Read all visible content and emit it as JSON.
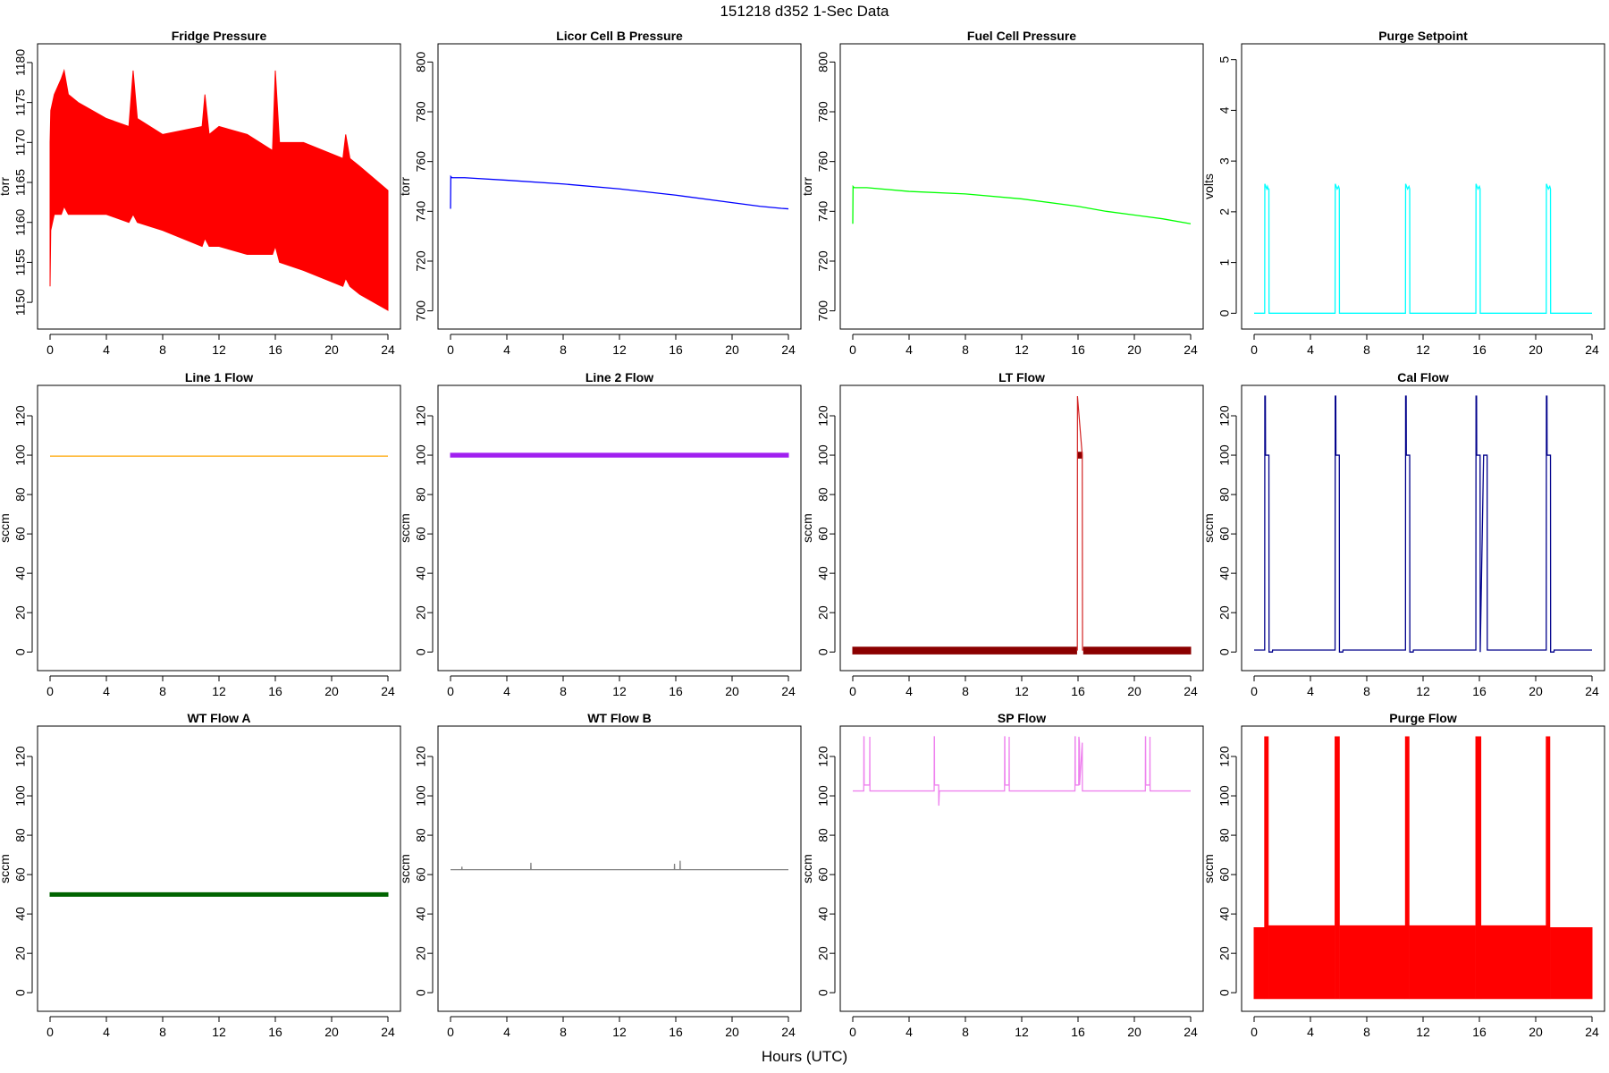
{
  "figure": {
    "title": "151218   d352   1-Sec Data",
    "xlabel": "Hours (UTC)"
  },
  "chart_data": [
    {
      "type": "line",
      "title": "Fridge Pressure",
      "ylabel": "torr",
      "xlim": [
        0,
        24
      ],
      "ylim": [
        1148,
        1181
      ],
      "xticks": [
        0,
        4,
        8,
        12,
        16,
        20,
        24
      ],
      "yticks": [
        1150,
        1155,
        1160,
        1165,
        1170,
        1175,
        1180
      ],
      "color": "#ff0000",
      "band": true,
      "series": [
        {
          "x": [
            0,
            0.05,
            0.3,
            0.8,
            1.0,
            1.3,
            2,
            4,
            5.6,
            5.9,
            6.2,
            8,
            10.8,
            11.0,
            11.3,
            12,
            14,
            15.8,
            16.0,
            16.3,
            18,
            20.8,
            21.0,
            21.3,
            22,
            24
          ],
          "ymin": [
            1152,
            1159,
            1161,
            1161,
            1162,
            1161,
            1161,
            1161,
            1160,
            1161,
            1160,
            1159,
            1157,
            1158,
            1157,
            1157,
            1156,
            1156,
            1157,
            1155,
            1154,
            1152,
            1153,
            1152,
            1151,
            1149
          ],
          "ymax": [
            1170,
            1174,
            1176,
            1178,
            1179,
            1176,
            1175,
            1173,
            1172,
            1179,
            1173,
            1171,
            1172,
            1176,
            1171,
            1172,
            1171,
            1169,
            1179,
            1170,
            1170,
            1168,
            1171,
            1168,
            1167,
            1164
          ]
        }
      ]
    },
    {
      "type": "line",
      "title": "Licor Cell B Pressure",
      "ylabel": "torr",
      "xlim": [
        0,
        24
      ],
      "ylim": [
        697,
        803
      ],
      "xticks": [
        0,
        4,
        8,
        12,
        16,
        20,
        24
      ],
      "yticks": [
        700,
        720,
        740,
        760,
        780,
        800
      ],
      "color": "#0000ff",
      "series": [
        {
          "x": [
            0,
            0.02,
            0.1,
            1,
            4,
            8,
            12,
            16,
            20,
            22,
            23.5,
            24
          ],
          "y": [
            741,
            754,
            753.5,
            753.5,
            752.5,
            751,
            749,
            746.5,
            743.5,
            742,
            741.2,
            741
          ]
        }
      ]
    },
    {
      "type": "line",
      "title": "Fuel Cell Pressure",
      "ylabel": "torr",
      "xlim": [
        0,
        24
      ],
      "ylim": [
        697,
        803
      ],
      "xticks": [
        0,
        4,
        8,
        12,
        16,
        20,
        24
      ],
      "yticks": [
        700,
        720,
        740,
        760,
        780,
        800
      ],
      "color": "#00ff00",
      "series": [
        {
          "x": [
            0,
            0.02,
            0.1,
            1,
            4,
            8,
            12,
            16,
            18,
            20,
            22,
            24
          ],
          "y": [
            735,
            750,
            749.5,
            749.5,
            748,
            747,
            745,
            742,
            740,
            738.5,
            737,
            735
          ]
        }
      ]
    },
    {
      "type": "line",
      "title": "Purge Setpoint",
      "ylabel": "volts",
      "xlim": [
        0,
        24
      ],
      "ylim": [
        -0.1,
        5.1
      ],
      "xticks": [
        0,
        4,
        8,
        12,
        16,
        20,
        24
      ],
      "yticks": [
        0,
        1,
        2,
        3,
        4,
        5
      ],
      "color": "#00ffff",
      "series": [
        {
          "x": [
            0,
            0.75,
            0.76,
            0.9,
            0.95,
            1.0,
            1.05,
            1.06,
            5.75,
            5.76,
            5.9,
            6.0,
            6.05,
            6.06,
            10.75,
            10.76,
            10.9,
            11.0,
            11.05,
            11.06,
            15.75,
            15.76,
            15.9,
            16.0,
            16.05,
            16.06,
            20.75,
            20.76,
            20.9,
            21.0,
            21.05,
            21.06,
            24
          ],
          "y": [
            0,
            0,
            2.55,
            2.45,
            2.5,
            2.45,
            2.45,
            0,
            0,
            2.55,
            2.45,
            2.5,
            2.45,
            0,
            0,
            2.55,
            2.45,
            2.5,
            2.45,
            0,
            0,
            2.55,
            2.45,
            2.5,
            2.45,
            0,
            0,
            2.55,
            2.45,
            2.5,
            2.45,
            0,
            0
          ]
        }
      ]
    },
    {
      "type": "line",
      "title": "Line 1 Flow",
      "ylabel": "sccm",
      "xlim": [
        0,
        24
      ],
      "ylim": [
        -4,
        130
      ],
      "xticks": [
        0,
        4,
        8,
        12,
        16,
        20,
        24
      ],
      "yticks": [
        0,
        20,
        40,
        60,
        80,
        100,
        120
      ],
      "color": "#ffa500",
      "series": [
        {
          "x": [
            0,
            24
          ],
          "y": [
            99.5,
            99.5
          ]
        }
      ]
    },
    {
      "type": "line",
      "title": "Line 2 Flow",
      "ylabel": "sccm",
      "xlim": [
        0,
        24
      ],
      "ylim": [
        -4,
        130
      ],
      "xticks": [
        0,
        4,
        8,
        12,
        16,
        20,
        24
      ],
      "yticks": [
        0,
        20,
        40,
        60,
        80,
        100,
        120
      ],
      "color": "#a020f0",
      "band": true,
      "series": [
        {
          "x": [
            0,
            24
          ],
          "ymin": [
            99,
            99
          ],
          "ymax": [
            101,
            101
          ]
        }
      ]
    },
    {
      "type": "line",
      "title": "LT Flow",
      "ylabel": "sccm",
      "xlim": [
        0,
        24
      ],
      "ylim": [
        -4,
        130
      ],
      "xticks": [
        0,
        4,
        8,
        12,
        16,
        20,
        24
      ],
      "yticks": [
        0,
        20,
        40,
        60,
        80,
        100,
        120
      ],
      "color": "#8b0000",
      "band": true,
      "series": [
        {
          "x": [
            0,
            15.9
          ],
          "ymin": [
            -1,
            -1
          ],
          "ymax": [
            2.5,
            2.5
          ]
        },
        {
          "x": [
            16.0,
            16.3
          ],
          "ymin": [
            98.5,
            98.5
          ],
          "ymax": [
            101.5,
            101.5
          ]
        },
        {
          "x": [
            16.4,
            24
          ],
          "ymin": [
            -1,
            -1
          ],
          "ymax": [
            2.5,
            2.5
          ]
        }
      ],
      "lines": [
        {
          "x": [
            15.9,
            15.95,
            15.96,
            16.3,
            16.32,
            16.4
          ],
          "y": [
            1,
            1,
            130,
            100,
            1,
            1
          ],
          "color": "#d22222"
        }
      ]
    },
    {
      "type": "line",
      "title": "Cal Flow",
      "ylabel": "sccm",
      "xlim": [
        0,
        24
      ],
      "ylim": [
        -4,
        130
      ],
      "xticks": [
        0,
        4,
        8,
        12,
        16,
        20,
        24
      ],
      "yticks": [
        0,
        20,
        40,
        60,
        80,
        100,
        120
      ],
      "color": "#00008b",
      "series": [
        {
          "x": [
            0,
            0.75,
            0.76,
            0.8,
            0.81,
            1.05,
            1.06,
            1.3,
            1.31,
            5.75,
            5.76,
            5.8,
            5.81,
            6.05,
            6.06,
            6.3,
            6.31,
            10.75,
            10.76,
            10.8,
            10.81,
            11.05,
            11.06,
            11.3,
            11.31,
            15.75,
            15.76,
            15.8,
            15.81,
            16.05,
            16.06,
            16.3,
            16.31,
            16.55,
            16.56,
            20.75,
            20.76,
            20.8,
            20.81,
            21.05,
            21.06,
            21.3,
            21.31,
            24
          ],
          "y": [
            1,
            1,
            130,
            130,
            100,
            100,
            0,
            0,
            1,
            1,
            130,
            130,
            100,
            100,
            0,
            0,
            1,
            1,
            130,
            130,
            100,
            100,
            0,
            0,
            1,
            1,
            130,
            130,
            100,
            100,
            0,
            100,
            100,
            100,
            1,
            1,
            130,
            130,
            100,
            100,
            0,
            0,
            1,
            1
          ]
        }
      ]
    },
    {
      "type": "line",
      "title": "WT Flow A",
      "ylabel": "sccm",
      "xlim": [
        0,
        24
      ],
      "ylim": [
        -4,
        130
      ],
      "xticks": [
        0,
        4,
        8,
        12,
        16,
        20,
        24
      ],
      "yticks": [
        0,
        20,
        40,
        60,
        80,
        100,
        120
      ],
      "color": "#006400",
      "band": true,
      "series": [
        {
          "x": [
            0,
            24
          ],
          "ymin": [
            49,
            49
          ],
          "ymax": [
            50.8,
            50.8
          ]
        }
      ]
    },
    {
      "type": "line",
      "title": "WT Flow B",
      "ylabel": "sccm",
      "xlim": [
        0,
        24
      ],
      "ylim": [
        -4,
        130
      ],
      "xticks": [
        0,
        4,
        8,
        12,
        16,
        20,
        24
      ],
      "yticks": [
        0,
        20,
        40,
        60,
        80,
        100,
        120
      ],
      "color": "#808080",
      "series": [
        {
          "x": [
            0,
            0.8,
            0.81,
            0.82,
            5.7,
            5.71,
            5.72,
            15.9,
            15.91,
            15.92,
            16.3,
            16.31,
            16.32,
            24
          ],
          "y": [
            62.5,
            62.5,
            64,
            62.5,
            62.5,
            66,
            62.5,
            62.5,
            65.5,
            62.5,
            62.5,
            67,
            62.5,
            62.5
          ]
        }
      ]
    },
    {
      "type": "line",
      "title": "SP Flow",
      "ylabel": "sccm",
      "xlim": [
        0,
        24
      ],
      "ylim": [
        -4,
        130
      ],
      "xticks": [
        0,
        4,
        8,
        12,
        16,
        20,
        24
      ],
      "yticks": [
        0,
        20,
        40,
        60,
        80,
        100,
        120
      ],
      "color": "#ee82ee",
      "series": [
        {
          "x": [
            0,
            0.78,
            0.79,
            0.8,
            0.81,
            1.2,
            1.21,
            1.22,
            5.78,
            5.79,
            5.8,
            5.81,
            6.1,
            6.11,
            6.15,
            6.2,
            10.78,
            10.79,
            10.8,
            10.81,
            11.1,
            11.11,
            11.12,
            15.78,
            15.79,
            15.8,
            15.81,
            16.05,
            16.06,
            16.1,
            16.11,
            16.3,
            16.31,
            16.32,
            20.78,
            20.79,
            20.8,
            20.81,
            21.1,
            21.11,
            21.12,
            24
          ],
          "y": [
            102.5,
            102.5,
            130,
            130,
            105.5,
            105.5,
            130,
            102.5,
            102.5,
            130,
            130,
            105.5,
            105.5,
            95,
            102.5,
            102.5,
            102.5,
            130,
            130,
            105.5,
            105.5,
            130,
            102.5,
            102.5,
            130,
            130,
            105.5,
            105.5,
            130,
            127,
            105.5,
            127,
            102.5,
            102.5,
            102.5,
            130,
            130,
            105.5,
            105.5,
            130,
            102.5,
            102.5
          ]
        }
      ]
    },
    {
      "type": "line",
      "title": "Purge Flow",
      "ylabel": "sccm",
      "xlim": [
        0,
        24
      ],
      "ylim": [
        -4,
        130
      ],
      "xticks": [
        0,
        4,
        8,
        12,
        16,
        20,
        24
      ],
      "yticks": [
        0,
        20,
        40,
        60,
        80,
        100,
        120
      ],
      "color": "#ff0000",
      "band": true,
      "series": [
        {
          "x": [
            0,
            0.7
          ],
          "ymin": [
            -3,
            -3
          ],
          "ymax": [
            33,
            33
          ]
        },
        {
          "x": [
            0.75,
            1.0
          ],
          "ymin": [
            -3,
            -3
          ],
          "ymax": [
            130,
            130
          ]
        },
        {
          "x": [
            1.05,
            5.7
          ],
          "ymin": [
            -3,
            -3
          ],
          "ymax": [
            34,
            34
          ]
        },
        {
          "x": [
            5.75,
            6.05
          ],
          "ymin": [
            -3,
            -3
          ],
          "ymax": [
            130,
            130
          ]
        },
        {
          "x": [
            6.1,
            10.7
          ],
          "ymin": [
            -3,
            -3
          ],
          "ymax": [
            34,
            34
          ]
        },
        {
          "x": [
            10.75,
            11.0
          ],
          "ymin": [
            -3,
            -3
          ],
          "ymax": [
            130,
            130
          ]
        },
        {
          "x": [
            11.05,
            15.7
          ],
          "ymin": [
            -3,
            -3
          ],
          "ymax": [
            34,
            34
          ]
        },
        {
          "x": [
            15.75,
            16.1
          ],
          "ymin": [
            -3,
            -3
          ],
          "ymax": [
            130,
            130
          ]
        },
        {
          "x": [
            16.15,
            20.7
          ],
          "ymin": [
            -3,
            -3
          ],
          "ymax": [
            34,
            34
          ]
        },
        {
          "x": [
            20.75,
            21.0
          ],
          "ymin": [
            -3,
            -3
          ],
          "ymax": [
            130,
            130
          ]
        },
        {
          "x": [
            21.05,
            24
          ],
          "ymin": [
            -3,
            -3
          ],
          "ymax": [
            33,
            33
          ]
        }
      ]
    }
  ]
}
